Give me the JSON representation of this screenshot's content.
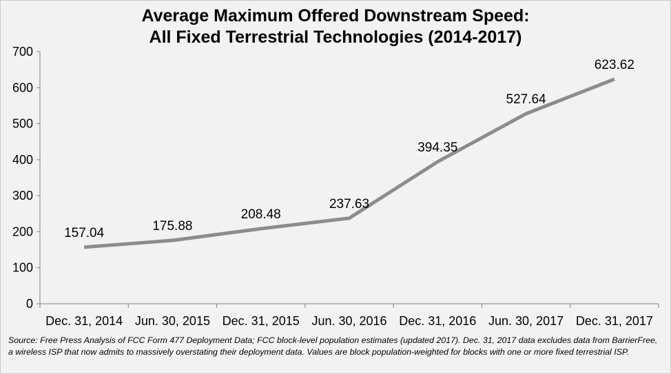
{
  "chart_data": {
    "type": "line",
    "title": [
      "Average Maximum Offered Downstream Speed:",
      "All Fixed Terrestrial Technologies (2014-2017)"
    ],
    "categories": [
      "Dec. 31, 2014",
      "Jun. 30, 2015",
      "Dec. 31, 2015",
      "Jun. 30, 2016",
      "Dec. 31, 2016",
      "Jun. 30, 2017",
      "Dec. 31, 2017"
    ],
    "series": [
      {
        "values": [
          157.04,
          175.88,
          208.48,
          237.63,
          394.35,
          527.64,
          623.62
        ],
        "labels": [
          "157.04",
          "175.88",
          "208.48",
          "237.63",
          "394.35",
          "527.64",
          "623.62"
        ],
        "color": "#8c8c8c"
      }
    ],
    "ylim": [
      0,
      700
    ],
    "yticks": [
      0,
      100,
      200,
      300,
      400,
      500,
      600,
      700
    ],
    "grid": false,
    "legend": "none",
    "xlabel": "",
    "ylabel": ""
  },
  "source_note": "Source: Free Press Analysis of FCC Form 477 Deployment Data; FCC block-level population estimates (updated  2017). Dec. 31, 2017 data excludes data from BarrierFree, a wireless ISP that now admits to massively overstating their  deployment data. Values are block population-weighted for blocks with one or more fixed terrestrial ISP."
}
